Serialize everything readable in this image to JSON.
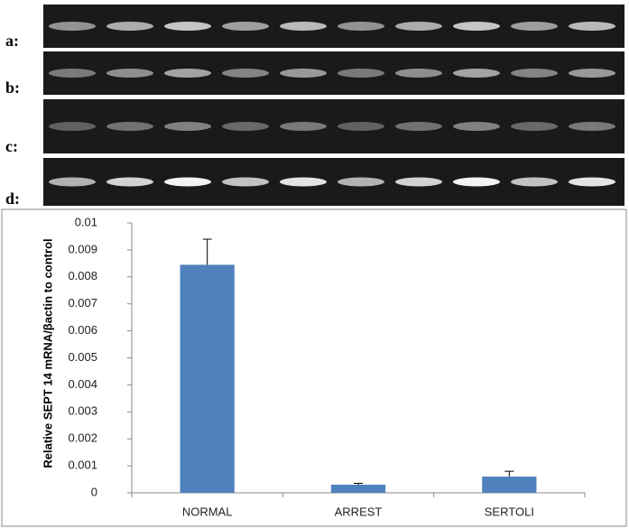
{
  "gel_panels": {
    "labels": [
      "a:",
      "b:",
      "c:",
      "d:"
    ]
  },
  "chart_data": {
    "type": "bar",
    "y_label": "Relative SEPT 14 mRNA/βactin to control",
    "categories": [
      "NORMAL",
      "ARREST",
      "SERTOLI"
    ],
    "values": [
      0.00845,
      0.0003,
      0.0006
    ],
    "errors": [
      0.00095,
      5e-05,
      0.0002
    ],
    "color": "#4f81bd",
    "ylim": [
      0,
      0.01
    ],
    "yticks": [
      0,
      0.001,
      0.002,
      0.003,
      0.004,
      0.005,
      0.006,
      0.007,
      0.008,
      0.009,
      0.01
    ]
  }
}
